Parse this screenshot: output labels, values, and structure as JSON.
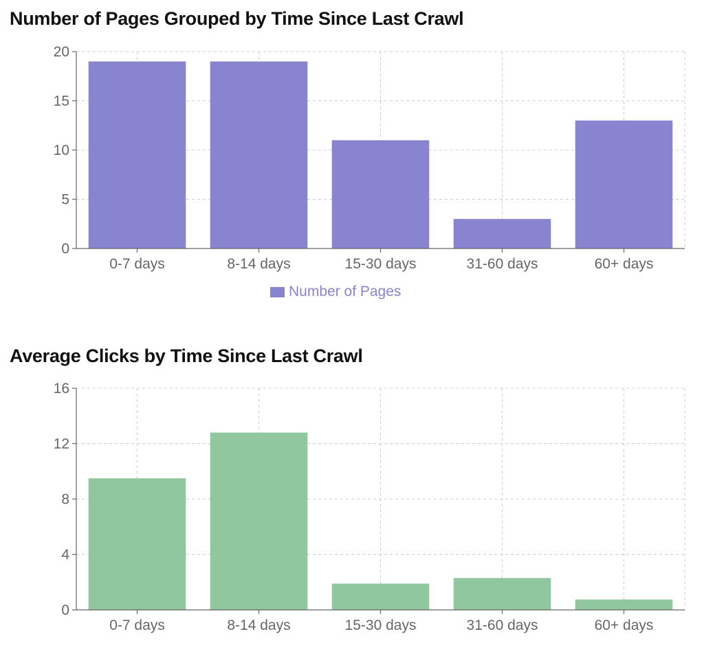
{
  "chart_data": [
    {
      "type": "bar",
      "title": "Number of Pages Grouped by Time Since Last Crawl",
      "categories": [
        "0-7 days",
        "8-14 days",
        "15-30 days",
        "31-60 days",
        "60+ days"
      ],
      "series": [
        {
          "name": "Number of Pages",
          "values": [
            19,
            19,
            11,
            3,
            13
          ],
          "color": "#8884d0"
        }
      ],
      "ylim": [
        0,
        20
      ],
      "yticks": [
        "0",
        "5",
        "10",
        "15",
        "20"
      ],
      "ytick_values": [
        0,
        5,
        10,
        15,
        20
      ],
      "grid": true,
      "legend": "bottom-center"
    },
    {
      "type": "bar",
      "title": "Average Clicks by Time Since Last Crawl",
      "categories": [
        "0-7 days",
        "8-14 days",
        "15-30 days",
        "31-60 days",
        "60+ days"
      ],
      "series": [
        {
          "values": [
            9.5,
            12.8,
            1.9,
            2.3,
            0.75
          ],
          "color": "#90c79e"
        }
      ],
      "ylim": [
        0,
        16
      ],
      "yticks": [
        "0",
        "4",
        "8",
        "12",
        "16"
      ],
      "ytick_values": [
        0,
        4,
        8,
        12,
        16
      ],
      "grid": true
    }
  ],
  "colors": {
    "grid": "#cccccc",
    "axis": "#666666",
    "tick_text": "#666666"
  }
}
